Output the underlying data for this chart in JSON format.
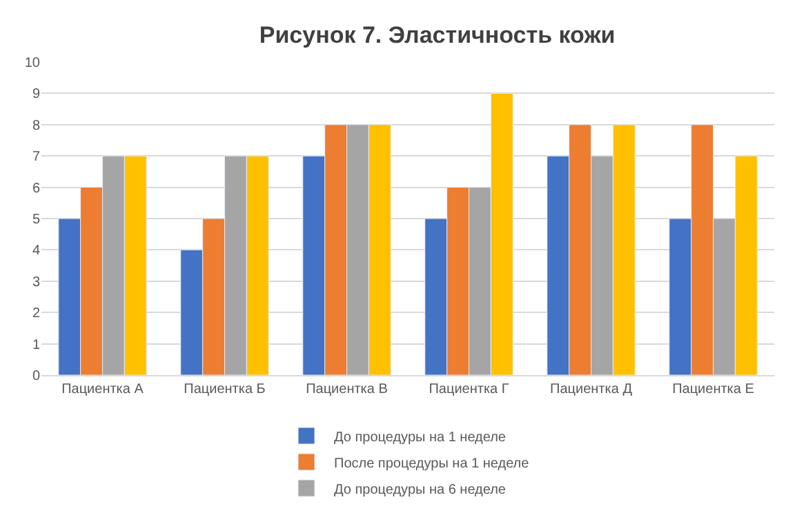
{
  "chart_data": {
    "type": "bar",
    "title": "Рисунок 7. Эластичность кожи",
    "categories": [
      "Пациентка А",
      "Пациентка Б",
      "Пациентка В",
      "Пациентка Г",
      "Пациентка Д",
      "Пациентка Е"
    ],
    "series": [
      {
        "name": "До процедуры на 1 неделе",
        "color": "#4472c4",
        "values": [
          5,
          4,
          7,
          5,
          7,
          5
        ]
      },
      {
        "name": "После процедуры на 1 неделе",
        "color": "#ed7d31",
        "values": [
          6,
          5,
          8,
          6,
          8,
          8
        ]
      },
      {
        "name": "До процедуры на 6 неделе",
        "color": "#a5a5a5",
        "values": [
          7,
          7,
          8,
          6,
          7,
          5
        ]
      },
      {
        "color": "#ffc000",
        "values": [
          7,
          7,
          8,
          9,
          8,
          7
        ]
      }
    ],
    "ylim": [
      0,
      10
    ],
    "yticks": [
      0,
      1,
      2,
      3,
      4,
      5,
      6,
      7,
      8,
      9,
      10
    ],
    "grid": "y",
    "legend": "bottom"
  }
}
